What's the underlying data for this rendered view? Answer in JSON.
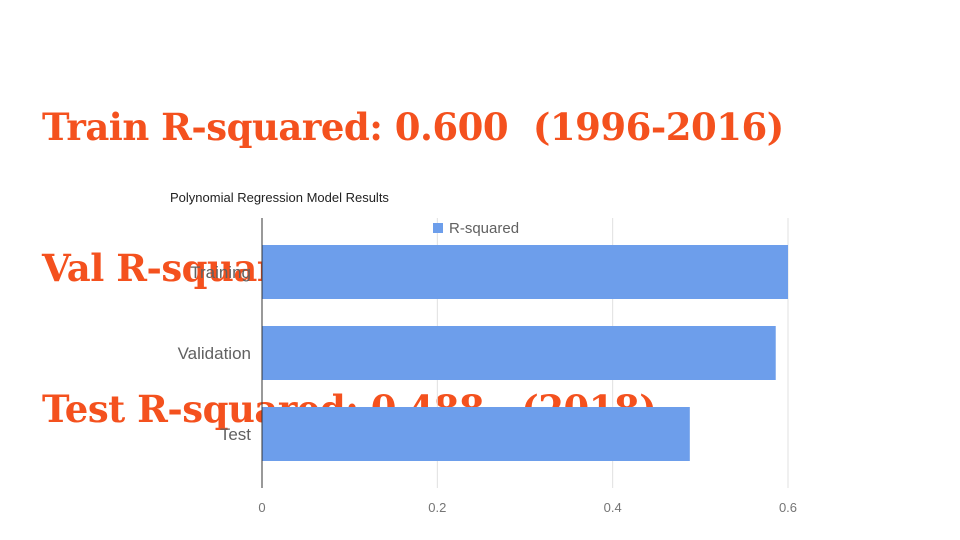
{
  "headline": {
    "lines": [
      "Train R-squared: 0.600  (1996-2016)",
      "Val R-squared: 0.586    (2017)",
      "Test R-squared: 0.488   (2018)"
    ]
  },
  "colors": {
    "headline": "#f4511e",
    "bar": "#6d9eeb",
    "gridline": "#e0e0e0",
    "axis": "#333333"
  },
  "chart_data": {
    "type": "bar",
    "orientation": "horizontal",
    "title": "Polynomial Regression Model Results",
    "categories": [
      "Training",
      "Validation",
      "Test"
    ],
    "series": [
      {
        "name": "R-squared",
        "values": [
          0.6,
          0.586,
          0.488
        ]
      }
    ],
    "xlim": [
      0,
      0.6
    ],
    "xticks": [
      0,
      0.2,
      0.4,
      0.6
    ],
    "xtick_labels": [
      "0",
      "0.2",
      "0.4",
      "0.6"
    ],
    "legend": "top",
    "grid": true
  }
}
